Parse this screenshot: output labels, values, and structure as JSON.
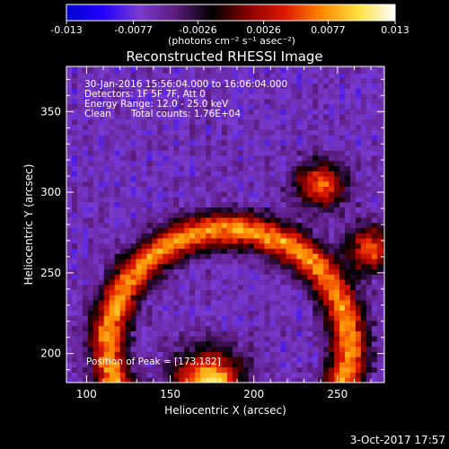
{
  "chart_data": {
    "type": "heatmap",
    "title": "Reconstructed RHESSI Image",
    "xlabel": "Heliocentric X (arcsec)",
    "ylabel": "Heliocentric Y (arcsec)",
    "xlim": [
      88,
      278
    ],
    "ylim": [
      182,
      378
    ],
    "x_ticks": [
      "100",
      "150",
      "200",
      "250"
    ],
    "x_tick_values": [
      100,
      150,
      200,
      250
    ],
    "y_ticks": [
      "200",
      "250",
      "300",
      "350"
    ],
    "y_tick_values": [
      200,
      250,
      300,
      350
    ],
    "grid": false,
    "colorbar": {
      "units": "(photons cm⁻² s⁻¹ asec⁻²)",
      "tick_labels": [
        "-0.013",
        "-0.0077",
        "-0.0026",
        "0.0026",
        "0.0077",
        "0.013"
      ],
      "tick_values": [
        -0.013,
        -0.0077,
        -0.0026,
        0.0026,
        0.0077,
        0.013
      ],
      "range": [
        -0.013,
        0.013
      ],
      "colors": [
        "#0000cc",
        "#2200ff",
        "#7a3bd0",
        "#5a1a7a",
        "#000000",
        "#8a0000",
        "#e01a00",
        "#ff8a00",
        "#ffe040",
        "#ffffff"
      ]
    },
    "annotations": {
      "time_range": "30-Jan-2016 15:56:04.000 to 16:06:04.000",
      "detectors": "Detectors: 1F 5F 7F, Att 0",
      "energy_range": "Energy Range: 12.0 - 25.0 keV",
      "method": "Clean",
      "total_counts": "Total counts: 1.76E+04",
      "peak_position": "Position of Peak = [173,182]"
    },
    "features": [
      {
        "kind": "arc-band",
        "center": [
          185,
          205
        ],
        "radius": 72,
        "intensity": 0.0075
      },
      {
        "kind": "source",
        "center": [
          240,
          305
        ],
        "radius": 10,
        "intensity": 0.009
      },
      {
        "kind": "source",
        "center": [
          270,
          265
        ],
        "radius": 10,
        "intensity": 0.008
      },
      {
        "kind": "peak",
        "center": [
          173,
          182
        ],
        "radius": 14,
        "intensity": 0.013
      }
    ]
  },
  "footer": {
    "date": "3-Oct-2017 17:57"
  }
}
